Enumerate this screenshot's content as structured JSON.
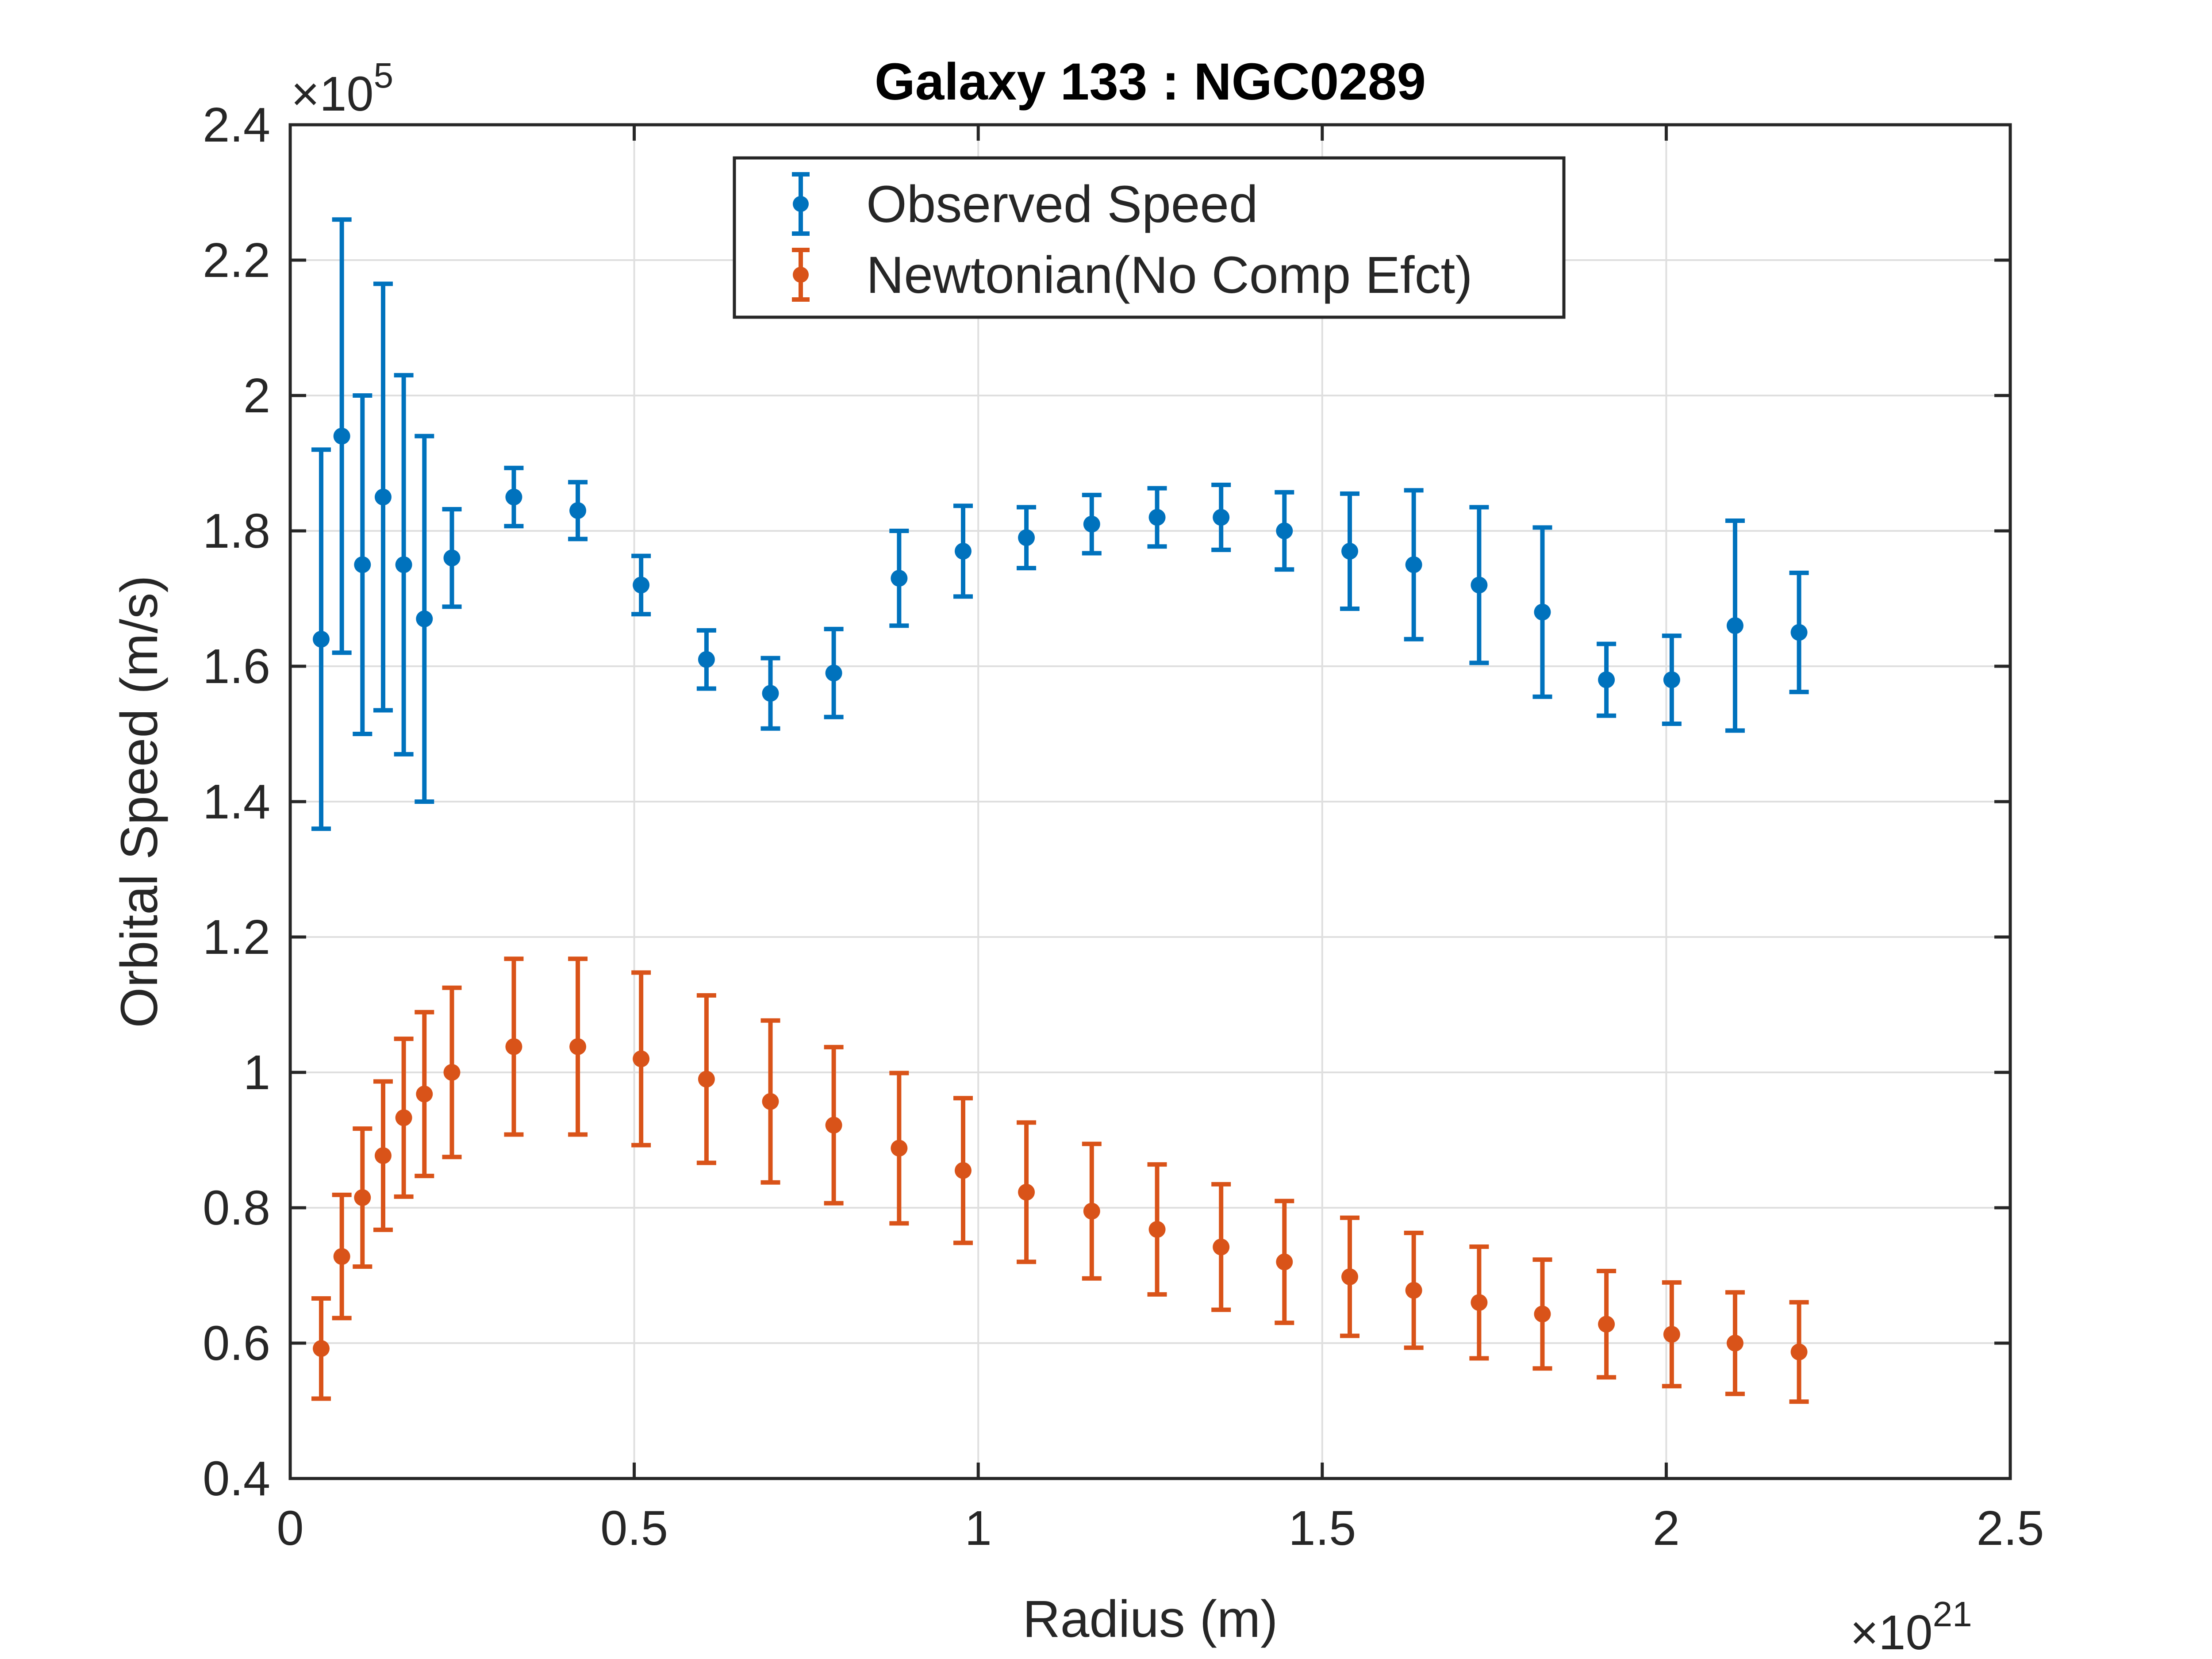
{
  "chart_data": {
    "type": "scatter",
    "title": "Galaxy 133 : NGC0289",
    "xlabel": "Radius (m)",
    "ylabel": "Orbital Speed (m/s)",
    "x_exponent_label": {
      "base": "×10",
      "exp": "21"
    },
    "y_exponent_label": {
      "base": "×10",
      "exp": "5"
    },
    "xlim": [
      0,
      2.5
    ],
    "ylim": [
      0.4,
      2.4
    ],
    "x_scale": 1e+21,
    "y_scale": 100000.0,
    "xticks": [
      "0",
      "0.5",
      "1",
      "1.5",
      "2",
      "2.5"
    ],
    "yticks": [
      "0.4",
      "0.6",
      "0.8",
      "1",
      "1.2",
      "1.4",
      "1.6",
      "1.8",
      "2",
      "2.2",
      "2.4"
    ],
    "grid": true,
    "legend_position": "top-center",
    "series": [
      {
        "name": "Observed Speed",
        "color": "#0072BD",
        "x": [
          0.045,
          0.075,
          0.105,
          0.135,
          0.165,
          0.195,
          0.235,
          0.325,
          0.418,
          0.51,
          0.605,
          0.698,
          0.79,
          0.885,
          0.978,
          1.07,
          1.165,
          1.26,
          1.353,
          1.445,
          1.54,
          1.633,
          1.728,
          1.82,
          1.913,
          2.008,
          2.1,
          2.193
        ],
        "y": [
          1.64,
          1.94,
          1.75,
          1.85,
          1.75,
          1.67,
          1.76,
          1.85,
          1.83,
          1.72,
          1.61,
          1.56,
          1.59,
          1.73,
          1.77,
          1.79,
          1.81,
          1.82,
          1.82,
          1.8,
          1.77,
          1.75,
          1.72,
          1.68,
          1.58,
          1.58,
          1.66,
          1.65
        ],
        "error": [
          0.28,
          0.32,
          0.25,
          0.315,
          0.28,
          0.27,
          0.072,
          0.043,
          0.042,
          0.043,
          0.043,
          0.052,
          0.065,
          0.07,
          0.067,
          0.045,
          0.043,
          0.043,
          0.048,
          0.057,
          0.085,
          0.11,
          0.115,
          0.125,
          0.053,
          0.065,
          0.155,
          0.088
        ]
      },
      {
        "name": "Newtonian(No Comp Efct)",
        "color": "#D95319",
        "x": [
          0.045,
          0.075,
          0.105,
          0.135,
          0.165,
          0.195,
          0.235,
          0.325,
          0.418,
          0.51,
          0.605,
          0.698,
          0.79,
          0.885,
          0.978,
          1.07,
          1.165,
          1.26,
          1.353,
          1.445,
          1.54,
          1.633,
          1.728,
          1.82,
          1.913,
          2.008,
          2.1,
          2.193
        ],
        "y": [
          0.592,
          0.728,
          0.815,
          0.877,
          0.933,
          0.968,
          1.0,
          1.038,
          1.038,
          1.02,
          0.99,
          0.957,
          0.922,
          0.888,
          0.855,
          0.823,
          0.795,
          0.768,
          0.742,
          0.72,
          0.698,
          0.678,
          0.66,
          0.643,
          0.628,
          0.613,
          0.6,
          0.587
        ]
      }
    ]
  }
}
